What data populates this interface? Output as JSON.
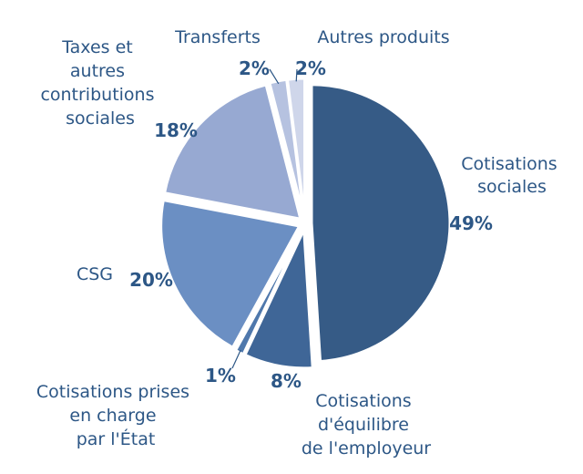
{
  "chart_data": {
    "type": "pie",
    "title": "",
    "unit": "%",
    "slices": [
      {
        "name": [
          "Cotisations",
          "sociales"
        ],
        "value": 49,
        "label": "49%",
        "color": "#365b86"
      },
      {
        "name": [
          "Cotisations",
          "d'équilibre",
          "de l'employeur"
        ],
        "value": 8,
        "label": "8%",
        "color": "#3f6697"
      },
      {
        "name": [
          "Cotisations prises",
          "en charge",
          "par l'État"
        ],
        "value": 1,
        "label": "1%",
        "color": "#4f78ac"
      },
      {
        "name": [
          "CSG"
        ],
        "value": 20,
        "label": "20%",
        "color": "#6b8fc3"
      },
      {
        "name": [
          "Taxes et",
          "autres",
          "contributions",
          "sociales"
        ],
        "value": 18,
        "label": "18%",
        "color": "#97a9d2"
      },
      {
        "name": [
          "Transferts"
        ],
        "value": 2,
        "label": "2%",
        "color": "#b6c2e0"
      },
      {
        "name": [
          "Autres produits"
        ],
        "value": 2,
        "label": "2%",
        "color": "#cfd6ea"
      }
    ]
  }
}
